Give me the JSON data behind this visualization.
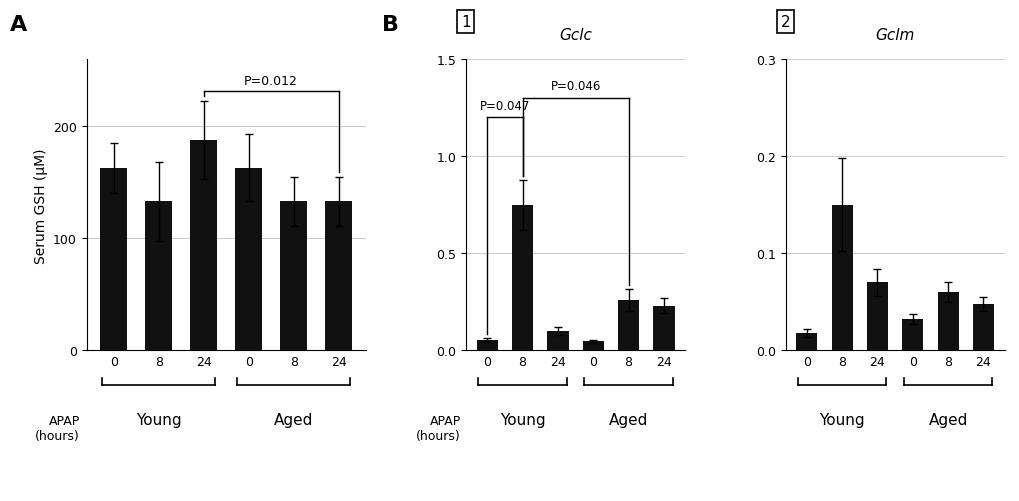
{
  "panel_A": {
    "ylabel": "Serum GSH (μM)",
    "values": [
      163,
      133,
      188,
      163,
      133,
      133
    ],
    "errors": [
      22,
      35,
      35,
      30,
      22,
      22
    ],
    "ylim": [
      0,
      260
    ],
    "yticks": [
      0,
      100,
      200
    ],
    "xticks_labels": [
      "0",
      "8",
      "24",
      "0",
      "8",
      "24"
    ],
    "group_labels": [
      "Young",
      "Aged"
    ],
    "pvalue_text": "P=0.012",
    "bar_color": "#111111"
  },
  "panel_B1": {
    "title": "Gclc",
    "values": [
      0.055,
      0.75,
      0.1,
      0.048,
      0.26,
      0.23
    ],
    "errors": [
      0.01,
      0.13,
      0.022,
      0.008,
      0.055,
      0.038
    ],
    "ylim": [
      0,
      1.5
    ],
    "yticks": [
      0,
      0.5,
      1.0,
      1.5
    ],
    "xticks_labels": [
      "0",
      "8",
      "24",
      "0",
      "8",
      "24"
    ],
    "group_labels": [
      "Young",
      "Aged"
    ],
    "pvalue1_text": "P=0.047",
    "pvalue2_text": "P=0.046",
    "bar_color": "#111111"
  },
  "panel_B2": {
    "title": "Gclm",
    "values": [
      0.018,
      0.15,
      0.07,
      0.032,
      0.06,
      0.048
    ],
    "errors": [
      0.004,
      0.048,
      0.014,
      0.005,
      0.01,
      0.007
    ],
    "ylim": [
      0,
      0.3
    ],
    "yticks": [
      0,
      0.1,
      0.2,
      0.3
    ],
    "xticks_labels": [
      "0",
      "8",
      "24",
      "0",
      "8",
      "24"
    ],
    "group_labels": [
      "Young",
      "Aged"
    ],
    "bar_color": "#111111"
  },
  "background_color": "#ffffff",
  "label_A": "A",
  "label_B": "B",
  "label_1": "1",
  "label_2": "2"
}
